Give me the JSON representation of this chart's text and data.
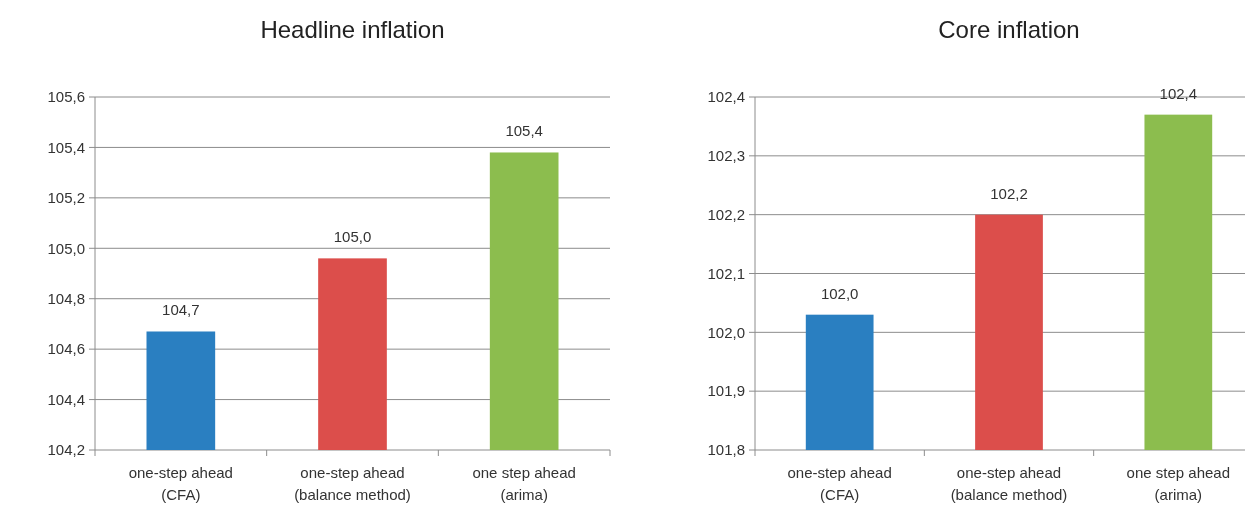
{
  "chart_data": [
    {
      "type": "bar",
      "title": "Headline inflation",
      "categories": [
        "one-step ahead\n(CFA)",
        "one-step ahead\n(balance method)",
        "one step ahead\n(arima)"
      ],
      "values": [
        104.67,
        104.96,
        105.38
      ],
      "value_labels": [
        "104,7",
        "105,0",
        "105,4"
      ],
      "colors": [
        "#2a7fc1",
        "#dc4e4b",
        "#8cbd4e"
      ],
      "ylim": [
        104.2,
        105.6
      ],
      "yticks": [
        {
          "value": 104.2,
          "label": "104,2"
        },
        {
          "value": 104.4,
          "label": "104,4"
        },
        {
          "value": 104.6,
          "label": "104,6"
        },
        {
          "value": 104.8,
          "label": "104,8"
        },
        {
          "value": 105.0,
          "label": "105,0"
        },
        {
          "value": 105.2,
          "label": "105,2"
        },
        {
          "value": 105.4,
          "label": "105,4"
        },
        {
          "value": 105.6,
          "label": "105,6"
        }
      ],
      "grid": "y"
    },
    {
      "type": "bar",
      "title": "Core inflation",
      "categories": [
        "one-step ahead\n(CFA)",
        "one-step ahead\n(balance method)",
        "one step ahead\n(arima)"
      ],
      "values": [
        102.03,
        102.2,
        102.37
      ],
      "value_labels": [
        "102,0",
        "102,2",
        "102,4"
      ],
      "colors": [
        "#2a7fc1",
        "#dc4e4b",
        "#8cbd4e"
      ],
      "ylim": [
        101.8,
        102.4
      ],
      "yticks": [
        {
          "value": 101.8,
          "label": "101,8"
        },
        {
          "value": 101.9,
          "label": "101,9"
        },
        {
          "value": 102.0,
          "label": "102,0"
        },
        {
          "value": 102.1,
          "label": "102,1"
        },
        {
          "value": 102.2,
          "label": "102,2"
        },
        {
          "value": 102.3,
          "label": "102,3"
        },
        {
          "value": 102.4,
          "label": "102,4"
        }
      ],
      "grid": "y"
    }
  ]
}
